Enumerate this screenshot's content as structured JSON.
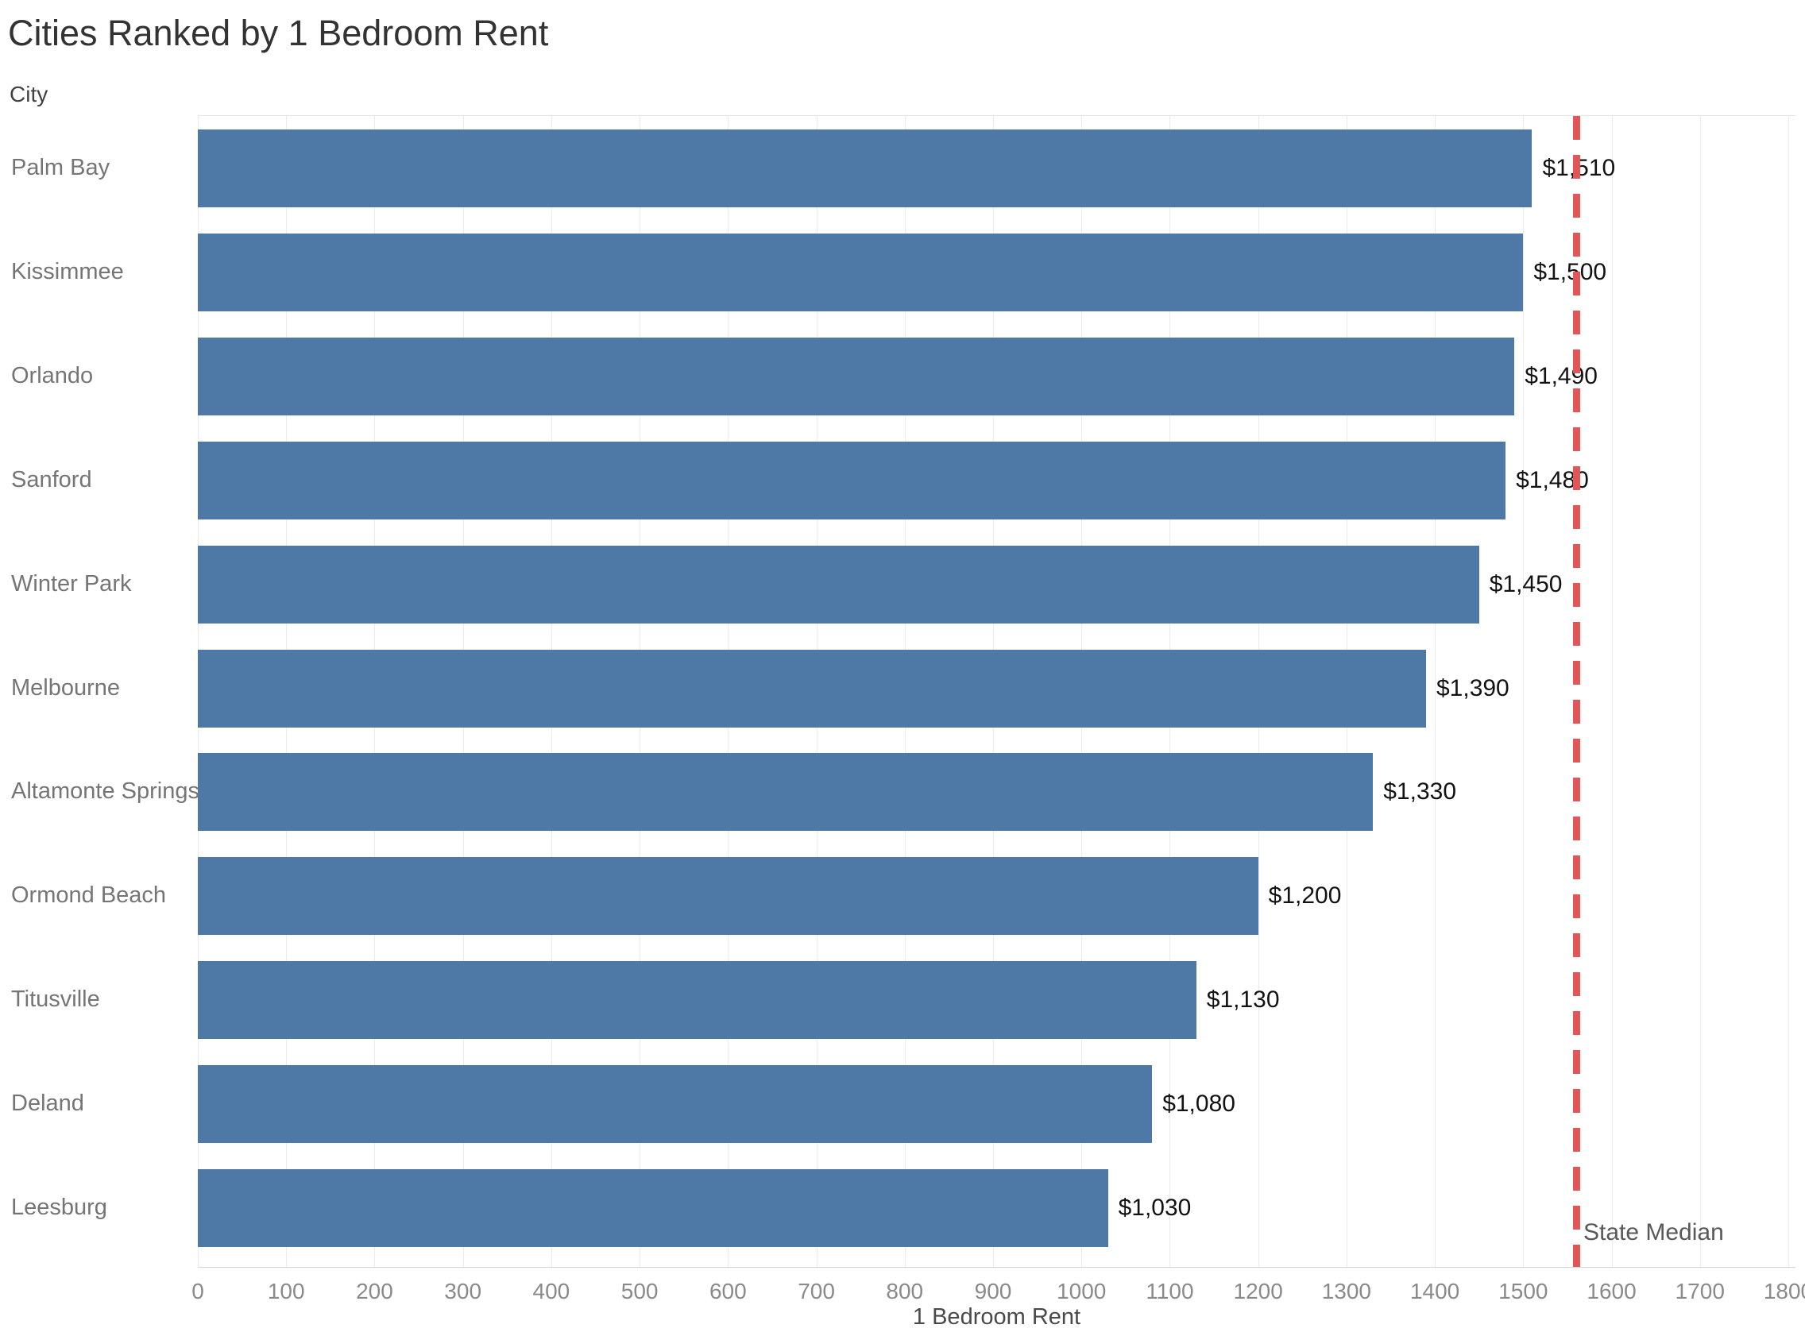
{
  "chart_data": {
    "type": "bar",
    "orientation": "horizontal",
    "title": "Cities Ranked by 1 Bedroom Rent",
    "ylabel": "City",
    "xlabel": "1 Bedroom Rent",
    "categories": [
      "Palm Bay",
      "Kissimmee",
      "Orlando",
      "Sanford",
      "Winter Park",
      "Melbourne",
      "Altamonte Springs",
      "Ormond Beach",
      "Titusville",
      "Deland",
      "Leesburg"
    ],
    "values": [
      1510,
      1500,
      1490,
      1480,
      1450,
      1390,
      1330,
      1200,
      1130,
      1080,
      1030
    ],
    "value_labels": [
      "$1,510",
      "$1,500",
      "$1,490",
      "$1,480",
      "$1,450",
      "$1,390",
      "$1,330",
      "$1,200",
      "$1,130",
      "$1,080",
      "$1,030"
    ],
    "xlim": [
      0,
      1800
    ],
    "x_tick_step": 100,
    "x_ticks": [
      0,
      100,
      200,
      300,
      400,
      500,
      600,
      700,
      800,
      900,
      1000,
      1100,
      1200,
      1300,
      1400,
      1500,
      1600,
      1700,
      1800
    ],
    "grid": "vertical-light",
    "legend": "none",
    "bar_color": "#4e79a7",
    "reference_line": {
      "label": "State Median",
      "value": 1560,
      "color": "#e15759",
      "style": "dashed"
    }
  },
  "colors": {
    "bar": "#4e79a7",
    "reference_line": "#e15759",
    "title_text": "#333333",
    "city_label_text": "#757575",
    "value_label_text": "#121212",
    "tick_label_text": "#8a8a8a",
    "gridline": "#ebebeb",
    "background": "#ffffff"
  }
}
